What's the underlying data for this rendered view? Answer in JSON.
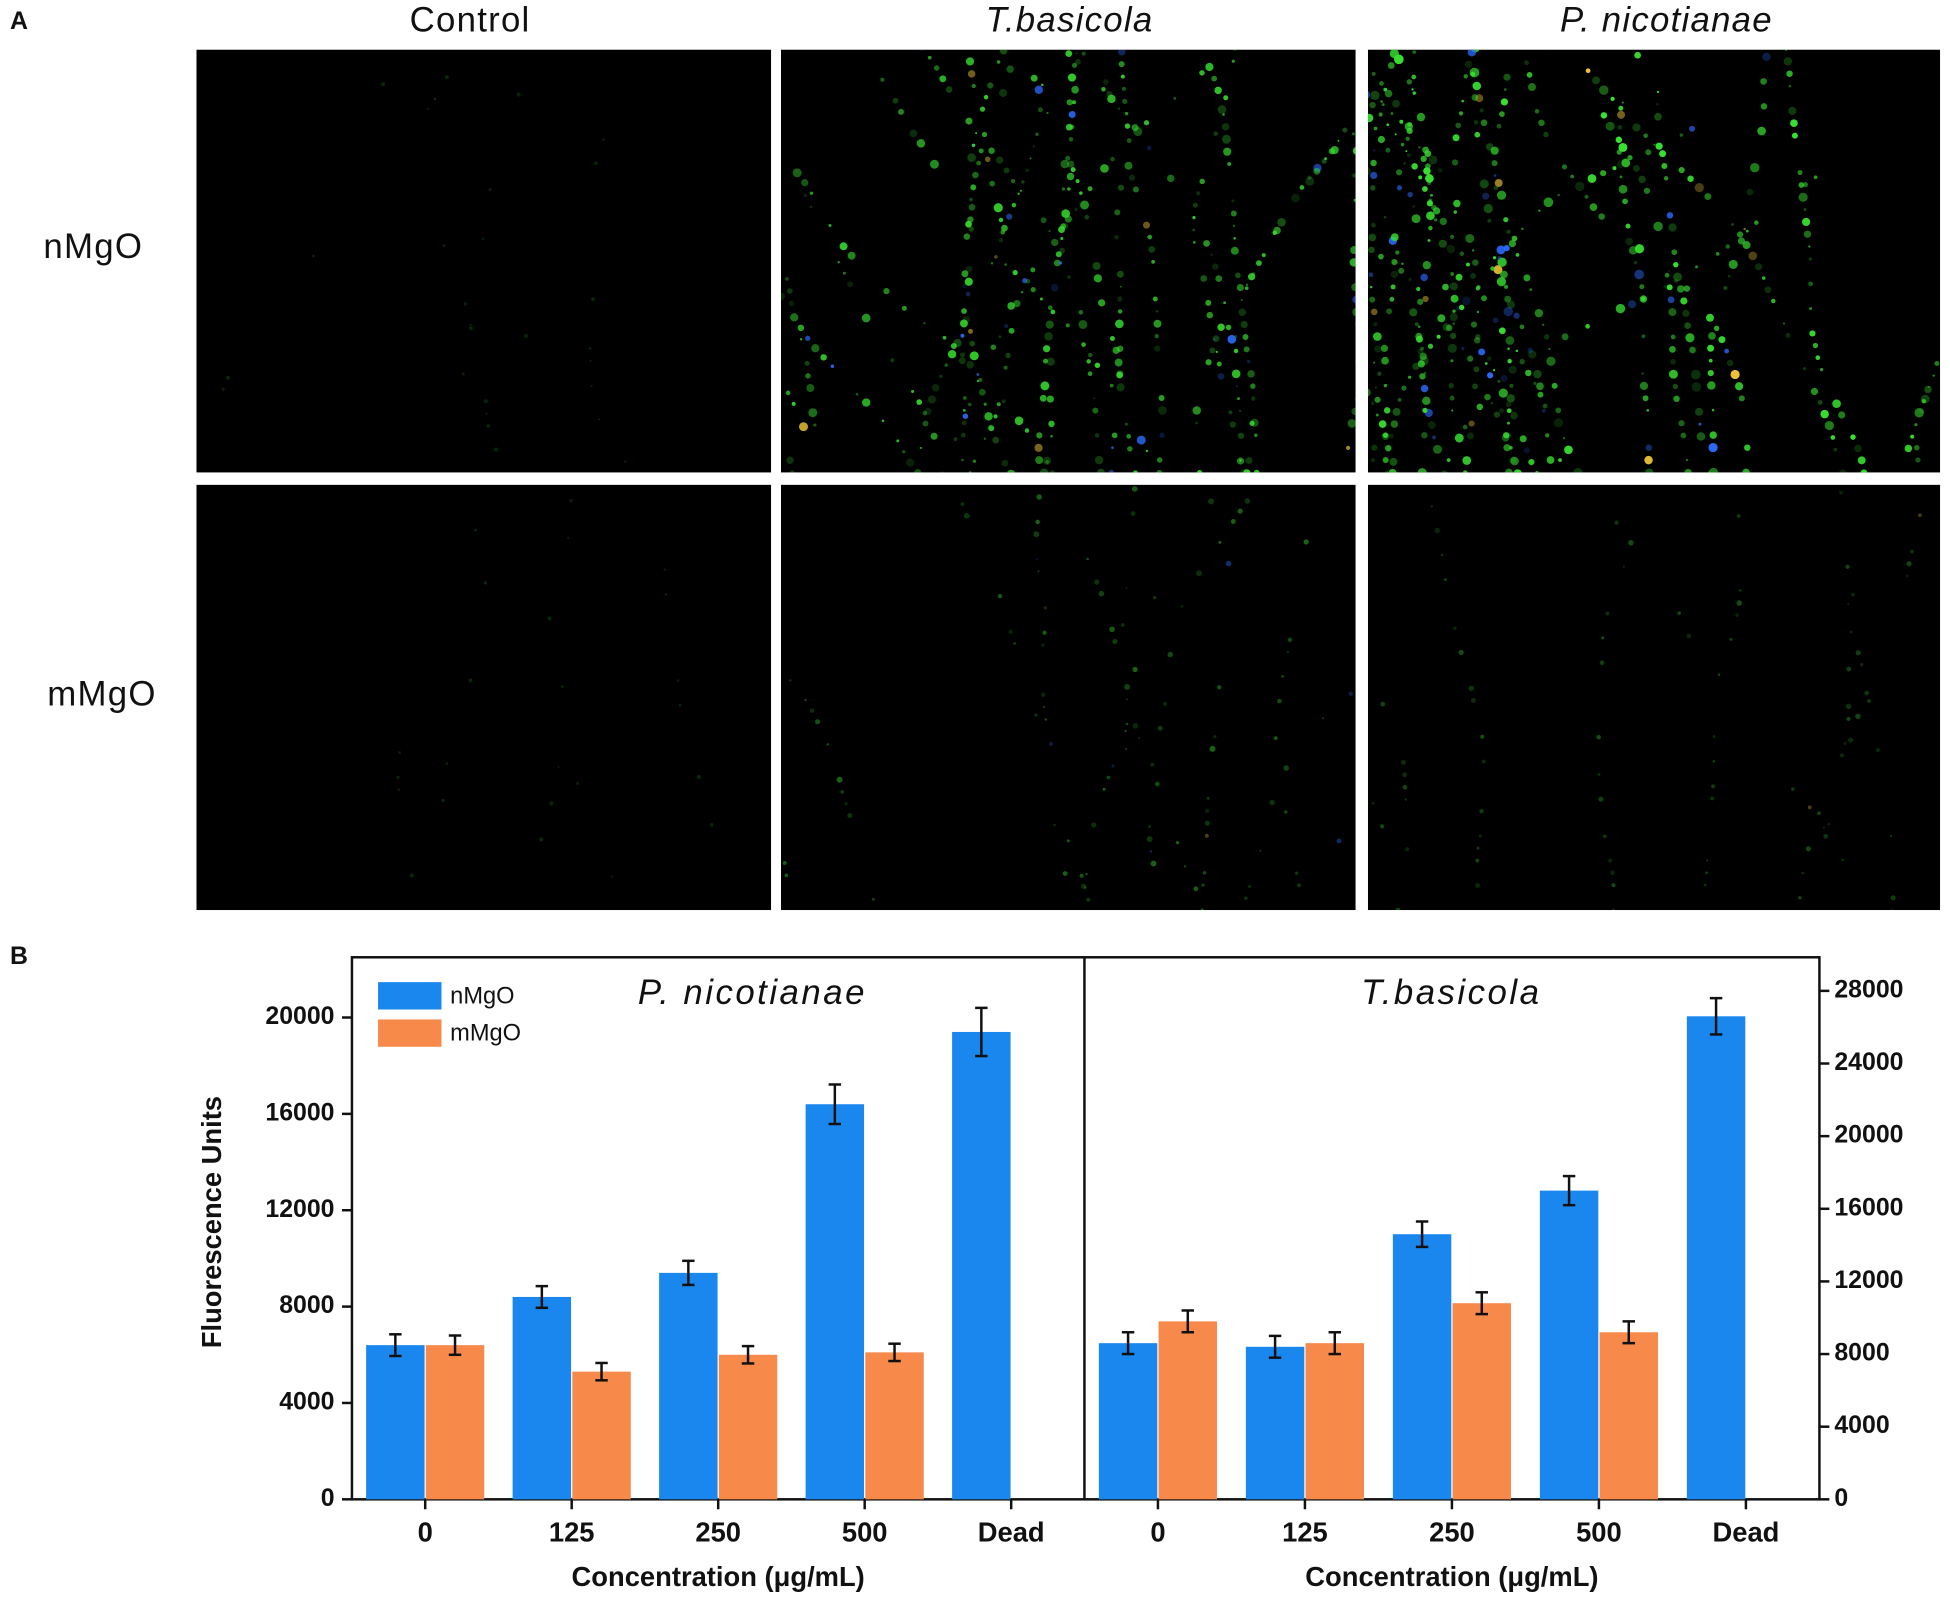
{
  "panel_a": {
    "label": "A",
    "columns": [
      "Control",
      "T.basicola",
      "P. nicotianae"
    ],
    "rows": [
      "nMgO",
      "mMgO"
    ]
  },
  "panel_b": {
    "label": "B"
  },
  "chart_data": [
    {
      "type": "bar",
      "title": "P. nicotianae",
      "categories": [
        "0",
        "125",
        "250",
        "500",
        "Dead"
      ],
      "xlabel": "Concentration (μg/mL)",
      "ylabel": "Fluorescence Units",
      "ylim": [
        0,
        22500
      ],
      "yticks": [
        0,
        4000,
        8000,
        12000,
        16000,
        20000
      ],
      "legend": "upper left",
      "series": [
        {
          "name": "nMgO",
          "color": "#1a87ef",
          "values": [
            6400,
            8400,
            9400,
            16400,
            19400
          ],
          "errors": [
            450,
            450,
            500,
            820,
            1000
          ]
        },
        {
          "name": "mMgO",
          "color": "#f7894a",
          "values": [
            6400,
            5300,
            6000,
            6100,
            null
          ],
          "errors": [
            400,
            360,
            360,
            360,
            null
          ]
        }
      ]
    },
    {
      "type": "bar",
      "title": "T.basicola",
      "categories": [
        "0",
        "125",
        "250",
        "500",
        "Dead"
      ],
      "xlabel": "Concentration (μg/mL)",
      "y2lim": [
        0,
        29850
      ],
      "y2ticks": [
        0,
        4000,
        8000,
        12000,
        16000,
        20000,
        24000,
        28000
      ],
      "series": [
        {
          "color": "#1a87ef",
          "axis": "y2",
          "values": [
            8600,
            8400,
            14600,
            17000,
            26600
          ],
          "errors": [
            600,
            600,
            700,
            800,
            1000
          ]
        },
        {
          "color": "#f7894a",
          "axis": "y2",
          "values": [
            9800,
            8600,
            10800,
            9200,
            null
          ],
          "errors": [
            600,
            600,
            600,
            600,
            null
          ]
        }
      ]
    }
  ]
}
